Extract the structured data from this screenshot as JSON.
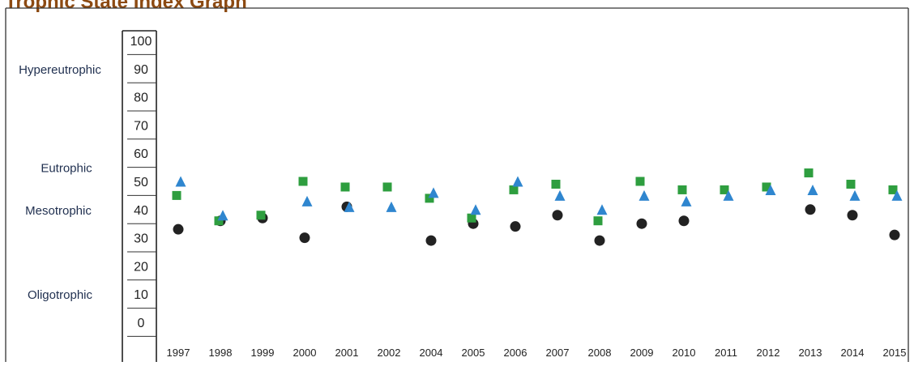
{
  "chart_data": {
    "type": "scatter",
    "title": "Trophic State Index Graph",
    "categories": [
      "1997",
      "1998",
      "1999",
      "2000",
      "2001",
      "2002",
      "2004",
      "2005",
      "2006",
      "2007",
      "2008",
      "2009",
      "2010",
      "2011",
      "2012",
      "2013",
      "2014",
      "2015"
    ],
    "series": [
      {
        "values": [
          33,
          36,
          37,
          30,
          41,
          null,
          29,
          35,
          34,
          38,
          29,
          35,
          36,
          null,
          null,
          40,
          38,
          31
        ],
        "marker": "circle",
        "color": "#222222"
      },
      {
        "values": [
          45,
          36,
          38,
          50,
          48,
          48,
          44,
          37,
          47,
          49,
          36,
          50,
          47,
          47,
          48,
          53,
          49,
          47
        ],
        "marker": "square",
        "color": "#2e9e3f"
      },
      {
        "values": [
          50,
          38,
          null,
          43,
          41,
          41,
          46,
          40,
          50,
          45,
          40,
          45,
          43,
          45,
          47,
          47,
          45,
          45
        ],
        "marker": "triangle",
        "color": "#2f86cf"
      }
    ],
    "y_ticks": [
      "100",
      "90",
      "80",
      "70",
      "60",
      "50",
      "40",
      "30",
      "20",
      "10",
      "0"
    ],
    "y_categories": [
      "Hypereutrophic",
      "Eutrophic",
      "Mesotrophic",
      "Oligotrophic"
    ],
    "ylim": [
      0,
      100
    ],
    "grid": false,
    "legend": "none"
  }
}
